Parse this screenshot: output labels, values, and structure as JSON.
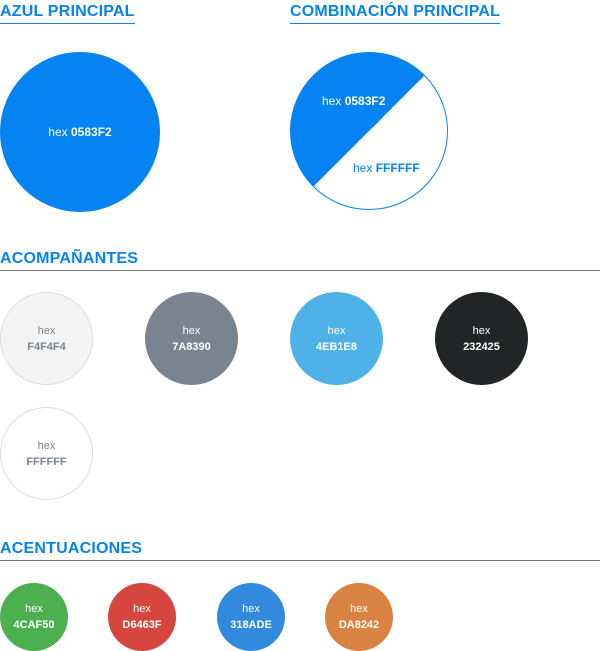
{
  "main": {
    "title": "AZUL PRINCIPAL",
    "swatch": {
      "prefix": "hex",
      "code": "0583F2",
      "color": "#0583F2",
      "text_color": "#FFFFFF"
    }
  },
  "combination": {
    "title": "COMBINACIÓN PRINCIPAL",
    "top": {
      "prefix": "hex",
      "code": "0583F2",
      "color": "#0583F2",
      "text_color": "#FFFFFF"
    },
    "bottom": {
      "prefix": "hex",
      "code": "FFFFFF",
      "color": "#FFFFFF",
      "text_color": "#0583F2"
    }
  },
  "accompanying": {
    "title": "ACOMPAÑANTES",
    "swatches": [
      {
        "prefix": "hex",
        "code": "F4F4F4",
        "color": "#F4F4F4",
        "text_color": "#7A8390"
      },
      {
        "prefix": "hex",
        "code": "7A8390",
        "color": "#7A8390",
        "text_color": "#FFFFFF"
      },
      {
        "prefix": "hex",
        "code": "4EB1E8",
        "color": "#4EB1E8",
        "text_color": "#FFFFFF"
      },
      {
        "prefix": "hex",
        "code": "232425",
        "color": "#232425",
        "text_color": "#FFFFFF"
      },
      {
        "prefix": "hex",
        "code": "FFFFFF",
        "color": "#FFFFFF",
        "text_color": "#7A8390"
      }
    ]
  },
  "accents": {
    "title": "ACENTUACIONES",
    "swatches": [
      {
        "prefix": "hex",
        "code": "4CAF50",
        "color": "#4CAF50",
        "text_color": "#FFFFFF"
      },
      {
        "prefix": "hex",
        "code": "D6463F",
        "color": "#D6463F",
        "text_color": "#FFFFFF"
      },
      {
        "prefix": "hex",
        "code": "318ADE",
        "color": "#318ADE",
        "text_color": "#FFFFFF"
      },
      {
        "prefix": "hex",
        "code": "DA8242",
        "color": "#DA8242",
        "text_color": "#FFFFFF"
      }
    ]
  }
}
